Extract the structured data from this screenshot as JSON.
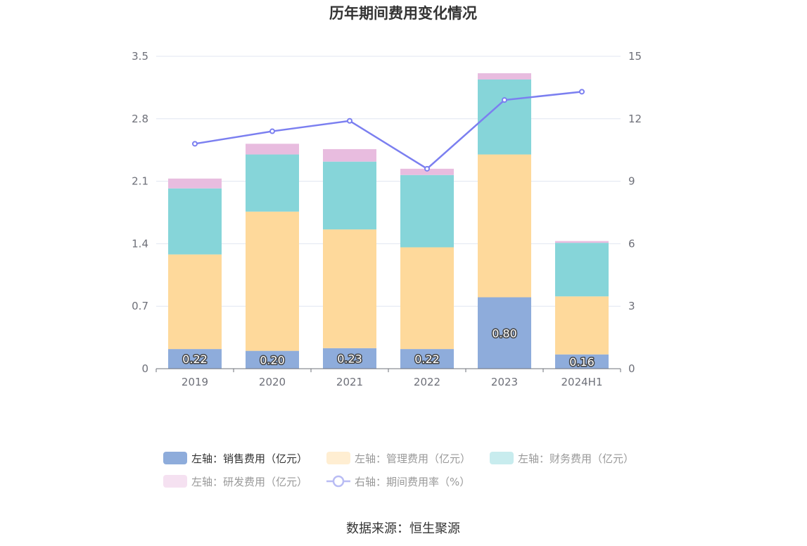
{
  "chart_data": {
    "type": "bar",
    "title": "历年期间费用变化情况",
    "categories": [
      "2019",
      "2020",
      "2021",
      "2022",
      "2023",
      "2024H1"
    ],
    "stacked": true,
    "series": [
      {
        "name": "左轴：销售费用（亿元）",
        "axis": "left",
        "color": "#8eacdb",
        "values": [
          0.22,
          0.2,
          0.23,
          0.22,
          0.8,
          0.16
        ],
        "labels": [
          "0.22",
          "0.20",
          "0.23",
          "0.22",
          "0.80",
          "0.16"
        ]
      },
      {
        "name": "左轴：管理费用（亿元）",
        "axis": "left",
        "color": "#fed99b",
        "values": [
          1.06,
          1.56,
          1.33,
          1.14,
          1.6,
          0.65
        ]
      },
      {
        "name": "左轴：财务费用（亿元）",
        "axis": "left",
        "color": "#86d5d9",
        "values": [
          0.74,
          0.64,
          0.76,
          0.81,
          0.84,
          0.6
        ]
      },
      {
        "name": "左轴：研发费用（亿元）",
        "axis": "left",
        "color": "#e8bcdf",
        "values": [
          0.11,
          0.12,
          0.14,
          0.07,
          0.07,
          0.02
        ]
      },
      {
        "name": "右轴：期间费用率（%）",
        "axis": "right",
        "type": "line",
        "color": "#7b7ff0",
        "values": [
          10.8,
          11.4,
          11.9,
          9.6,
          12.9,
          13.3
        ]
      }
    ],
    "y_left": {
      "ticks": [
        "0",
        "0.7",
        "1.4",
        "2.1",
        "2.8",
        "3.5"
      ],
      "ylim": [
        0,
        3.5
      ]
    },
    "y_right": {
      "ticks": [
        "0",
        "3",
        "6",
        "9",
        "12",
        "15"
      ],
      "ylim": [
        0,
        15
      ]
    },
    "grid": true,
    "legend_position": "bottom",
    "legend_inactive_text_color": "#999999",
    "legend_active_text_color": "#333333"
  },
  "source_text": "数据来源：恒生聚源"
}
